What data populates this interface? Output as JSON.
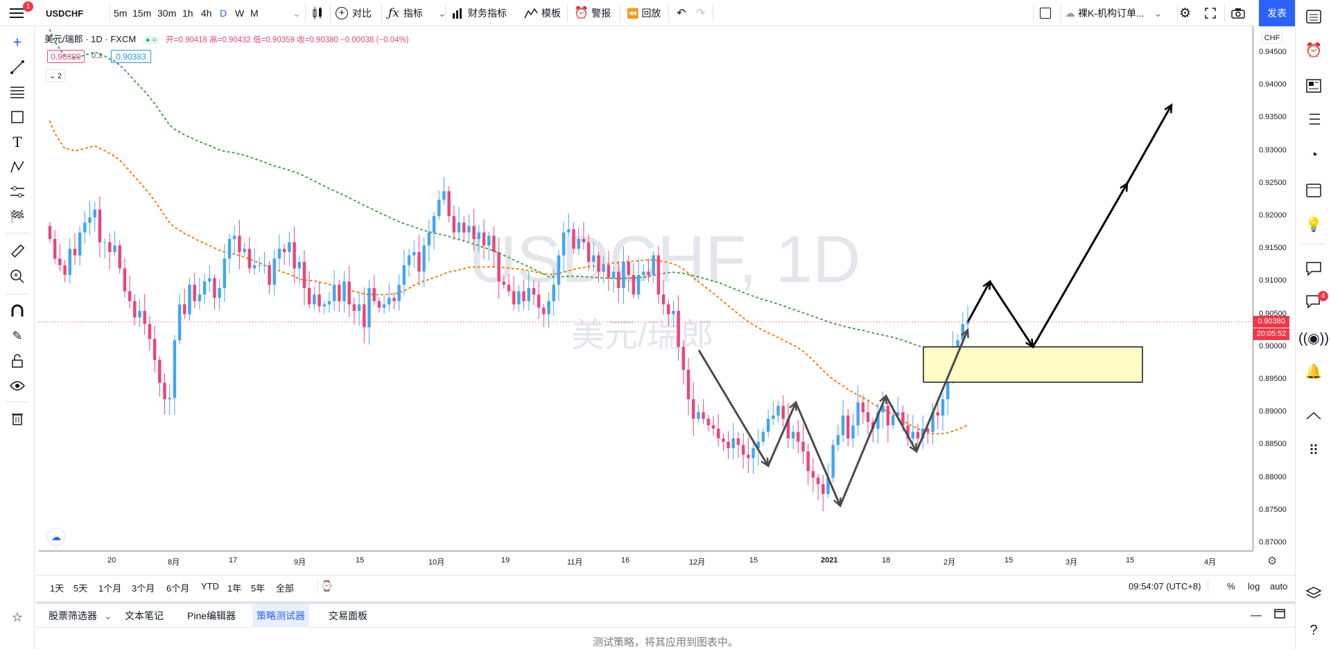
{
  "topbar": {
    "menu_badge": "1",
    "symbol": "USDCHF",
    "intervals": [
      "5m",
      "15m",
      "30m",
      "1h",
      "4h",
      "D",
      "W",
      "M"
    ],
    "active_interval": "D",
    "compare_label": "对比",
    "indicators_label": "指标",
    "financials_label": "财务指标",
    "templates_label": "模板",
    "alert_label": "警报",
    "replay_label": "回放",
    "layout_name": "裸K-机构订单...",
    "publish_label": "发表"
  },
  "legend": {
    "title": "美元/瑞郎 · 1D · FXCM",
    "ohlc": "开=0.90418  高=0.90432  低=0.90359  收=0.90380  −0.00038 (−0.04%)",
    "bid": "0.90380",
    "spread": "0.3",
    "ask": "0.90383",
    "collapse_count": "2"
  },
  "watermark": {
    "symbol": "USDCHF, 1D",
    "name": "美元/瑞郎"
  },
  "price_axis": {
    "currency": "CHF",
    "ticks": [
      "0.94500",
      "0.94000",
      "0.93500",
      "0.93000",
      "0.92500",
      "0.92000",
      "0.91500",
      "0.91000",
      "0.90500",
      "0.90000",
      "0.89500",
      "0.89000",
      "0.88500",
      "0.88000",
      "0.87500",
      "0.87000"
    ],
    "last_price": "0.90380",
    "countdown": "20:05:52"
  },
  "time_axis": {
    "ticks": [
      "20",
      "8月",
      "17",
      "9月",
      "15",
      "10月",
      "19",
      "11月",
      "16",
      "12月",
      "15",
      "2021",
      "18",
      "2月",
      "15",
      "3月",
      "15",
      "4月"
    ]
  },
  "bottombar": {
    "ranges": [
      "1天",
      "5天",
      "1个月",
      "3个月",
      "6个月",
      "YTD",
      "1年",
      "5年",
      "全部"
    ],
    "clock": "09:54:07 (UTC+8)",
    "percent": "%",
    "log": "log",
    "auto": "auto"
  },
  "panel": {
    "tabs": [
      "股票筛选器",
      "文本笔记",
      "Pine编辑器",
      "策略测试器",
      "交易面板"
    ],
    "active_tab": "策略测试器",
    "message": "测试策略，将其应用到图表中。"
  },
  "rightbar": {
    "notification_count": "4"
  },
  "colors": {
    "up": "#42a5f5",
    "down": "#e9467a",
    "ma_orange": "#f57c00",
    "ma_green": "#43a047",
    "accent": "#2962ff",
    "zone": "#fffbc4"
  },
  "chart_data": {
    "type": "candlestick",
    "symbol": "USDCHF",
    "timeframe": "1D",
    "ylim": [
      0.868,
      0.9475
    ],
    "x_ticks": [
      "20",
      "8月",
      "17",
      "9月",
      "15",
      "10月",
      "19",
      "11月",
      "16",
      "12月",
      "15",
      "2021",
      "18",
      "2月",
      "15",
      "3月",
      "15",
      "4月"
    ],
    "close": [
      0.9165,
      0.9135,
      0.9125,
      0.911,
      0.915,
      0.914,
      0.9175,
      0.919,
      0.9198,
      0.921,
      0.916,
      0.916,
      0.9145,
      0.9155,
      0.912,
      0.9085,
      0.907,
      0.9045,
      0.9055,
      0.9035,
      0.9012,
      0.898,
      0.8945,
      0.892,
      0.8922,
      0.901,
      0.9065,
      0.905,
      0.9095,
      0.907,
      0.908,
      0.91,
      0.9105,
      0.9075,
      0.909,
      0.9135,
      0.9165,
      0.917,
      0.9145,
      0.915,
      0.912,
      0.9125,
      0.9125,
      0.9125,
      0.9095,
      0.9135,
      0.915,
      0.9145,
      0.916,
      0.912,
      0.913,
      0.909,
      0.9065,
      0.908,
      0.9062,
      0.9065,
      0.907,
      0.9095,
      0.907,
      0.91,
      0.9065,
      0.9055,
      0.9065,
      0.903,
      0.909,
      0.907,
      0.906,
      0.9065,
      0.9075,
      0.907,
      0.9095,
      0.9125,
      0.914,
      0.9145,
      0.9115,
      0.9155,
      0.9175,
      0.92,
      0.9225,
      0.9238,
      0.92,
      0.9175,
      0.919,
      0.9175,
      0.9185,
      0.9165,
      0.9175,
      0.9155,
      0.917,
      0.9145,
      0.91,
      0.9095,
      0.9085,
      0.9065,
      0.9085,
      0.907,
      0.909,
      0.908,
      0.906,
      0.905,
      0.907,
      0.9095,
      0.914,
      0.9175,
      0.918,
      0.915,
      0.9165,
      0.916,
      0.913,
      0.914,
      0.9115,
      0.9125,
      0.9105,
      0.9115,
      0.909,
      0.913,
      0.911,
      0.908,
      0.911,
      0.9115,
      0.911,
      0.914,
      0.908,
      0.9065,
      0.905,
      0.9055,
      0.9,
      0.8965,
      0.892,
      0.889,
      0.89,
      0.889,
      0.888,
      0.8875,
      0.886,
      0.8855,
      0.8845,
      0.886,
      0.885,
      0.8835,
      0.883,
      0.8845,
      0.8855,
      0.887,
      0.889,
      0.8895,
      0.891,
      0.889,
      0.886,
      0.887,
      0.8855,
      0.884,
      0.881,
      0.88,
      0.879,
      0.8775,
      0.88,
      0.885,
      0.8865,
      0.8895,
      0.886,
      0.888,
      0.8915,
      0.89,
      0.8885,
      0.8875,
      0.89,
      0.891,
      0.888,
      0.8895,
      0.89,
      0.888,
      0.886,
      0.887,
      0.886,
      0.8875,
      0.887,
      0.89,
      0.8895,
      0.892,
      0.897,
      0.9,
      0.901,
      0.9035,
      0.9038
    ]
  }
}
